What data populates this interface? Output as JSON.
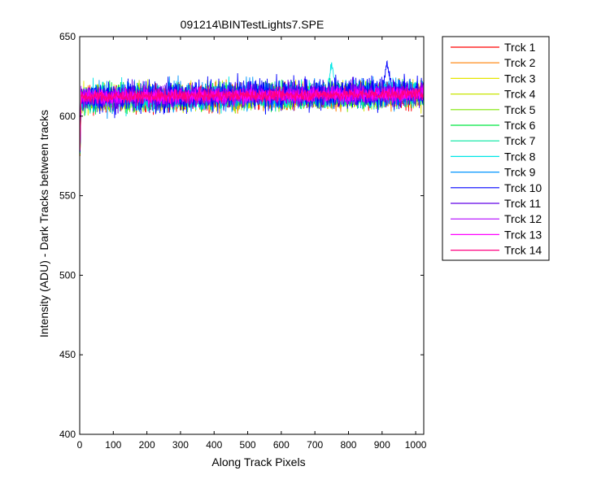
{
  "chart_data": {
    "type": "line",
    "title": "091214\\BINTestLights7.SPE",
    "xlabel": "Along Track Pixels",
    "ylabel": "Intensity (ADU) - Dark Tracks between tracks",
    "xlim": [
      0,
      1024
    ],
    "ylim": [
      400,
      650
    ],
    "xticks": [
      0,
      100,
      200,
      300,
      400,
      500,
      600,
      700,
      800,
      900,
      1000
    ],
    "yticks": [
      400,
      450,
      500,
      550,
      600,
      650
    ],
    "grid": false,
    "legend_position": "outside-top-right",
    "x_range": [
      1,
      1024
    ],
    "series": [
      {
        "name": "Trck 1",
        "color": "#ff0000",
        "mean": 610.5,
        "noise": 4.0,
        "drift": 2.5
      },
      {
        "name": "Trck 2",
        "color": "#ff7f00",
        "mean": 610.5,
        "noise": 4.0,
        "drift": 2.5
      },
      {
        "name": "Trck 3",
        "color": "#e6e600",
        "mean": 611.0,
        "noise": 4.0,
        "drift": 2.5
      },
      {
        "name": "Trck 4",
        "color": "#c8e600",
        "mean": 611.0,
        "noise": 4.0,
        "drift": 2.5
      },
      {
        "name": "Trck 5",
        "color": "#7fe600",
        "mean": 611.0,
        "noise": 4.0,
        "drift": 2.5
      },
      {
        "name": "Trck 6",
        "color": "#00e640",
        "mean": 611.5,
        "noise": 4.0,
        "drift": 2.5
      },
      {
        "name": "Trck 7",
        "color": "#00e6a0",
        "mean": 611.5,
        "noise": 4.0,
        "drift": 2.5
      },
      {
        "name": "Trck 8",
        "color": "#00e6e6",
        "mean": 611.5,
        "noise": 4.5,
        "drift": 3.0
      },
      {
        "name": "Trck 9",
        "color": "#0095ff",
        "mean": 611.5,
        "noise": 4.5,
        "drift": 3.0
      },
      {
        "name": "Trck 10",
        "color": "#0000ff",
        "mean": 612.0,
        "noise": 5.0,
        "drift": 3.5
      },
      {
        "name": "Trck 11",
        "color": "#6000e6",
        "mean": 612.0,
        "noise": 4.0,
        "drift": 2.5
      },
      {
        "name": "Trck 12",
        "color": "#b000ff",
        "mean": 612.0,
        "noise": 3.0,
        "drift": 2.0
      },
      {
        "name": "Trck 13",
        "color": "#ff00ff",
        "mean": 612.0,
        "noise": 2.5,
        "drift": 2.0
      },
      {
        "name": "Trck 14",
        "color": "#ff0080",
        "mean": 612.0,
        "noise": 2.0,
        "drift": 2.0
      }
    ],
    "features": {
      "start_dip_value": 575,
      "peaks": [
        {
          "series": "Trck 8",
          "x": 750,
          "y": 632
        },
        {
          "series": "Trck 10",
          "x": 915,
          "y": 633
        }
      ]
    }
  }
}
